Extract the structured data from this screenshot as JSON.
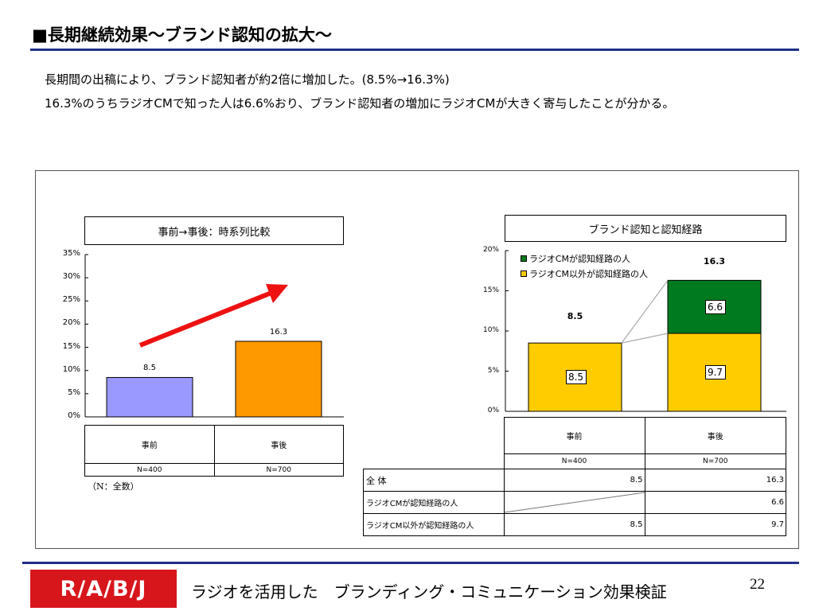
{
  "slide": {
    "title": "■長期継続効果～ブランド認知の拡大～",
    "line1": "長期間の出稿により、ブランド認知者が約2倍に増加した。(8.5%→16.3%)",
    "line2": "16.3%のうちラジオCMで知った人は6.6%おり、ブランド認知者の増加にラジオCMが大きく寄与したことが分かる。",
    "footer_logo": "R/A/B/J",
    "footer_text": "ラジオを活用した　ブランディング・コミュニケーション効果検証",
    "page_number": "22"
  },
  "chart_data": [
    {
      "type": "bar",
      "title": "事前→事後：時系列比較",
      "categories": [
        "事前",
        "事後"
      ],
      "values": [
        8.5,
        16.3
      ],
      "value_labels": [
        "8.5",
        "16.3"
      ],
      "colors": [
        "#9999ff",
        "#ff9900"
      ],
      "ylim": [
        0,
        35
      ],
      "yticks": [
        "0%",
        "5%",
        "10%",
        "15%",
        "20%",
        "25%",
        "30%",
        "35%"
      ],
      "sample_sizes": [
        "N=400",
        "N=700"
      ],
      "note": "（N：全数）",
      "trend_arrow_color": "#ee1111"
    },
    {
      "type": "bar",
      "stacked": true,
      "title": "ブランド認知と認知経路",
      "categories": [
        "事前",
        "事後"
      ],
      "ylim": [
        0,
        20
      ],
      "yticks": [
        "0%",
        "5%",
        "10%",
        "15%",
        "20%"
      ],
      "legend_position": "top-left",
      "totals": [
        8.5,
        16.3
      ],
      "total_labels": [
        "8.5",
        "16.3"
      ],
      "series": [
        {
          "name": "ラジオCM以外が認知経路の人",
          "values": [
            8.5,
            9.7
          ],
          "labels": [
            "8.5",
            "9.7"
          ],
          "color": "#ffcc00"
        },
        {
          "name": "ラジオCMが認知経路の人",
          "values": [
            0,
            6.6
          ],
          "labels": [
            "",
            "6.6"
          ],
          "color": "#007a1f"
        }
      ],
      "sample_sizes": [
        "N=400",
        "N=700"
      ],
      "table": {
        "rows": [
          {
            "label": "全 体",
            "values": [
              "8.5",
              "16.3"
            ]
          },
          {
            "label": "ラジオCMが認知経路の人",
            "values": [
              "",
              "6.6"
            ]
          },
          {
            "label": "ラジオCM以外が認知経路の人",
            "values": [
              "8.5",
              "9.7"
            ]
          }
        ]
      }
    }
  ]
}
